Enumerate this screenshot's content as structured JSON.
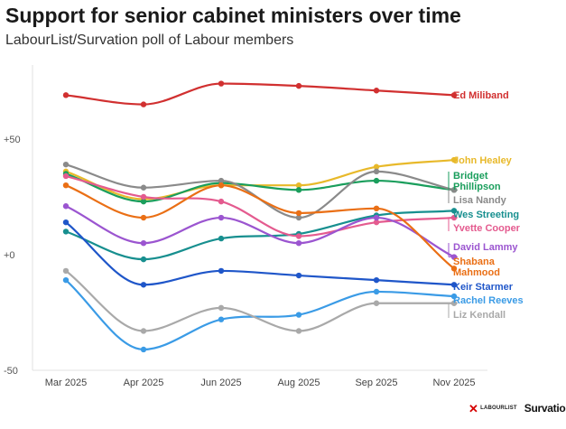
{
  "header": {
    "title": "Support for senior cabinet ministers over time",
    "subtitle": "LabourList/Survation poll of Labour members"
  },
  "logos": {
    "labourlist": "LABOURLIST",
    "survation": "Survation."
  },
  "chart_data": {
    "type": "line",
    "title": "Support for senior cabinet ministers over time",
    "subtitle": "LabourList/Survation poll of Labour members",
    "xlabel": "",
    "ylabel": "",
    "categories": [
      "Mar 2025",
      "Apr 2025",
      "Jun 2025",
      "Aug 2025",
      "Sep 2025",
      "Nov 2025"
    ],
    "ylim": [
      -50,
      80
    ],
    "yticks": [
      {
        "value": 50,
        "label": "+50"
      },
      {
        "value": 0,
        "label": "+0"
      },
      {
        "value": -50,
        "label": "-50"
      }
    ],
    "grid": false,
    "legend": "direct labels at line ends",
    "series": [
      {
        "name": "Ed Miliband",
        "color": "#d13030",
        "values": [
          69,
          65,
          74,
          73,
          71,
          69
        ],
        "label_lines": [
          "Ed Miliband"
        ]
      },
      {
        "name": "John Healey",
        "color": "#e8b92a",
        "values": [
          36,
          24,
          30,
          30,
          38,
          41
        ],
        "label_lines": [
          "John Healey"
        ]
      },
      {
        "name": "Bridget Phillipson",
        "color": "#1a9e5c",
        "values": [
          35,
          23,
          31,
          28,
          32,
          28
        ],
        "label_lines": [
          "Bridget",
          "Phillipson"
        ]
      },
      {
        "name": "Lisa Nandy",
        "color": "#8a8a8a",
        "values": [
          39,
          29,
          32,
          16,
          36,
          28
        ],
        "label_lines": [
          "Lisa Nandy"
        ]
      },
      {
        "name": "Wes Streeting",
        "color": "#178f8f",
        "values": [
          10,
          -2,
          7,
          9,
          17,
          19
        ],
        "label_lines": [
          "Wes Streeting"
        ]
      },
      {
        "name": "Yvette Cooper",
        "color": "#e45b8f",
        "values": [
          34,
          25,
          23,
          8,
          14,
          16
        ],
        "label_lines": [
          "Yvette Cooper"
        ]
      },
      {
        "name": "David Lammy",
        "color": "#9b55d0",
        "values": [
          21,
          5,
          16,
          5,
          16,
          -1
        ],
        "label_lines": [
          "David Lammy"
        ]
      },
      {
        "name": "Shabana Mahmood",
        "color": "#ea6f15",
        "values": [
          30,
          16,
          30,
          18,
          20,
          -6
        ],
        "label_lines": [
          "Shabana",
          "Mahmood"
        ]
      },
      {
        "name": "Keir Starmer",
        "color": "#1f56c9",
        "values": [
          14,
          -13,
          -7,
          -9,
          -11,
          -13
        ],
        "label_lines": [
          "Keir Starmer"
        ]
      },
      {
        "name": "Rachel Reeves",
        "color": "#3a9be6",
        "values": [
          -11,
          -41,
          -28,
          -26,
          -16,
          -18
        ],
        "label_lines": [
          "Rachel Reeves"
        ]
      },
      {
        "name": "Liz Kendall",
        "color": "#a9a9a9",
        "values": [
          -7,
          -33,
          -23,
          -33,
          -21,
          -21
        ],
        "label_lines": [
          "Liz Kendall"
        ]
      }
    ]
  }
}
